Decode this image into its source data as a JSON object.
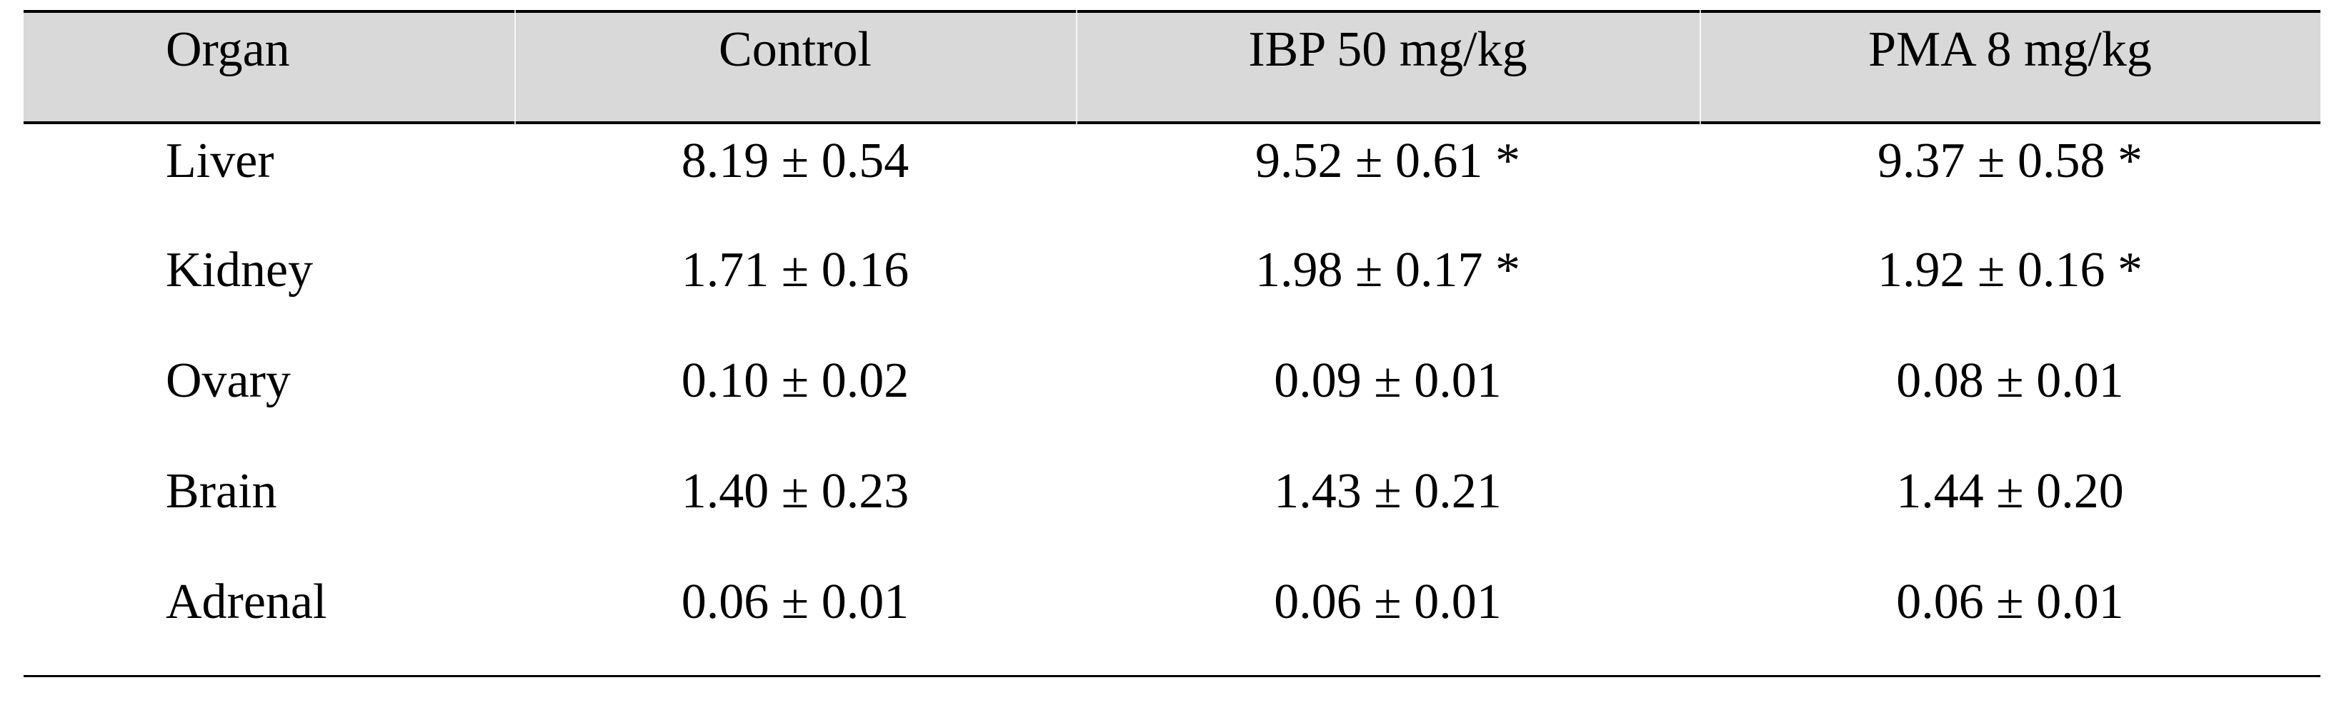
{
  "table": {
    "columns": [
      "Organ",
      "Control",
      "IBP 50 mg/kg",
      "PMA 8 mg/kg"
    ],
    "rows": [
      {
        "organ": "Liver",
        "control": "8.19 ± 0.54",
        "ibp": "9.52 ± 0.61 *",
        "pma": "9.37 ± 0.58 *"
      },
      {
        "organ": "Kidney",
        "control": "1.71 ± 0.16",
        "ibp": "1.98 ± 0.17 *",
        "pma": "1.92 ± 0.16 *"
      },
      {
        "organ": "Ovary",
        "control": "0.10 ± 0.02",
        "ibp": "0.09 ± 0.01",
        "pma": "0.08 ± 0.01"
      },
      {
        "organ": "Brain",
        "control": "1.40 ± 0.23",
        "ibp": "1.43 ± 0.21",
        "pma": "1.44 ± 0.20"
      },
      {
        "organ": "Adrenal",
        "control": "0.06 ± 0.01",
        "ibp": "0.06 ± 0.01",
        "pma": "0.06 ± 0.01"
      }
    ],
    "significance_marker": "*",
    "colors": {
      "header_background": "#d9d9d9",
      "rule": "#000000",
      "text": "#000000",
      "column_separator": "#f2f2f2"
    }
  }
}
